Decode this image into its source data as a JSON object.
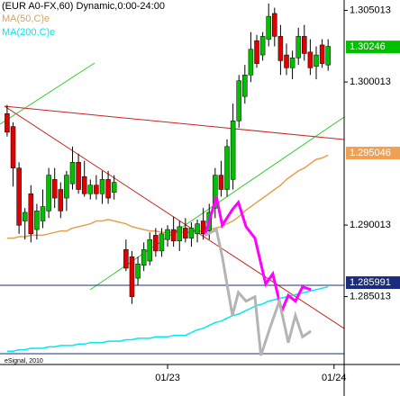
{
  "chart_data": {
    "type": "candlestick",
    "title": "(EUR A0-FX,60) Dynamic,0:00-24:00",
    "source": "eSignal, 2010",
    "categories": [
      null,
      null,
      null,
      null,
      null,
      null,
      null,
      null,
      null,
      null,
      null,
      null,
      null,
      null,
      null,
      null,
      null,
      null,
      null,
      null,
      null,
      null,
      null,
      null,
      null,
      null,
      null,
      "01/23",
      null,
      null,
      null,
      null,
      null,
      null,
      null,
      null,
      null,
      null,
      null,
      null,
      null,
      null,
      null,
      null,
      null,
      null,
      null,
      null,
      null,
      null,
      null,
      null,
      null,
      null,
      null,
      "01/24"
    ],
    "open": [
      1.2978,
      1.2969,
      1.294,
      1.2903,
      1.2922,
      1.2897,
      1.2903,
      1.291,
      1.2932,
      1.2925,
      1.2919,
      1.2929,
      1.2944,
      1.2934,
      1.2922,
      1.2928,
      1.2922,
      1.2932,
      1.2923,
      null,
      1.2883,
      1.2878,
      1.2863,
      1.2872,
      1.2875,
      1.2893,
      1.2882,
      1.289,
      1.2897,
      1.2889,
      1.2898,
      1.2891,
      1.2894,
      1.2903,
      1.2896,
      1.2912,
      1.2935,
      1.2925,
      1.2932,
      1.2973,
      1.299,
      1.3005,
      1.3029,
      1.3019,
      1.303,
      1.3048,
      1.3032,
      1.3019,
      1.301,
      1.3017,
      1.3032,
      1.3021,
      1.3011,
      1.3026,
      1.3012,
      null
    ],
    "high": [
      1.2984,
      1.2972,
      1.2944,
      1.2912,
      1.2928,
      1.2915,
      1.2925,
      1.294,
      1.294,
      1.293,
      1.2938,
      1.2955,
      1.295,
      1.2945,
      1.2932,
      1.2935,
      1.2938,
      1.2938,
      1.2935,
      null,
      1.289,
      1.2882,
      1.2878,
      1.2888,
      1.2895,
      1.2898,
      1.2898,
      1.29,
      1.2906,
      1.2903,
      1.2905,
      1.2902,
      1.2904,
      1.2912,
      1.2915,
      1.294,
      1.2945,
      1.296,
      1.2985,
      1.3005,
      1.3012,
      1.3035,
      1.3033,
      1.3035,
      1.3055,
      1.3052,
      1.304,
      1.3027,
      1.3022,
      1.3038,
      1.304,
      1.303,
      1.3025,
      1.303,
      1.303,
      null
    ],
    "low": [
      1.2962,
      1.2927,
      1.2894,
      1.289,
      1.2888,
      1.289,
      1.2898,
      1.2905,
      1.2912,
      1.2905,
      1.291,
      1.2925,
      1.2922,
      1.292,
      1.2918,
      1.2918,
      1.2915,
      1.2915,
      1.2918,
      null,
      1.2868,
      1.2845,
      1.2858,
      1.2868,
      1.2872,
      1.2878,
      1.2878,
      1.2885,
      1.2885,
      1.2882,
      1.2888,
      1.2885,
      1.2888,
      1.289,
      1.289,
      1.2905,
      1.292,
      1.292,
      1.2925,
      1.2968,
      1.2985,
      1.3,
      1.301,
      1.3015,
      1.3025,
      1.3025,
      1.3005,
      1.3005,
      1.3002,
      1.3012,
      1.3015,
      1.3005,
      1.3002,
      1.301,
      1.3008,
      null
    ],
    "close": [
      1.2965,
      1.294,
      1.29,
      1.2909,
      1.2894,
      1.291,
      1.2913,
      1.2935,
      1.2919,
      1.291,
      1.2935,
      1.2944,
      1.2925,
      1.2922,
      1.2928,
      1.2922,
      1.2932,
      1.2919,
      1.293,
      null,
      1.287,
      1.285,
      1.2873,
      1.2883,
      1.289,
      1.2882,
      1.2894,
      1.2897,
      1.2889,
      1.2899,
      1.2891,
      1.2898,
      1.2901,
      1.2894,
      1.2909,
      1.2935,
      1.2925,
      1.2955,
      1.2973,
      1.3001,
      1.3005,
      1.3023,
      1.3013,
      1.3032,
      1.3046,
      1.3032,
      1.3015,
      1.301,
      1.3017,
      1.3032,
      1.302,
      1.301,
      1.3019,
      1.3013,
      1.3025,
      null
    ],
    "up_color": "#00c000",
    "down_color": "#e00000",
    "series": [
      {
        "name": "MA(50,C)e",
        "color": "#e8a050",
        "values": [
          1.2891,
          1.2891,
          1.2892,
          1.2892,
          1.2893,
          1.2893,
          1.2893,
          1.2894,
          1.2895,
          1.2896,
          1.2896,
          1.2898,
          1.2899,
          1.29,
          1.2901,
          1.2903,
          1.2903,
          1.2904,
          1.2903,
          1.2902,
          1.2901,
          1.2899,
          1.2898,
          1.2897,
          1.2896,
          1.2896,
          1.2895,
          1.2895,
          1.2895,
          1.2895,
          1.2895,
          1.2895,
          1.2896,
          1.2896,
          1.2897,
          1.2898,
          1.2899,
          1.2901,
          1.2903,
          1.2906,
          1.291,
          1.2913,
          1.2916,
          1.2919,
          1.2922,
          1.2925,
          1.2928,
          1.2932,
          1.2935,
          1.2938,
          1.294,
          1.2943,
          1.2946,
          1.2947,
          1.2949,
          null
        ]
      },
      {
        "name": "MA(200,C)e",
        "color": "#00e8f0",
        "values": [
          1.2812,
          1.2812,
          1.2813,
          1.2813,
          1.2814,
          1.2814,
          1.2814,
          1.2815,
          1.2815,
          1.2816,
          1.2816,
          1.2816,
          1.2817,
          1.2817,
          1.2818,
          1.2818,
          1.2818,
          1.2819,
          1.2819,
          1.2819,
          1.282,
          1.282,
          1.2821,
          1.2821,
          1.2821,
          1.2822,
          1.2822,
          1.2822,
          1.2823,
          1.2823,
          1.2823,
          1.2825,
          1.2827,
          1.2828,
          1.283,
          1.2832,
          1.2833,
          1.2835,
          1.2837,
          1.2838,
          1.284,
          1.2842,
          1.2844,
          1.2845,
          1.2847,
          1.2848,
          1.2849,
          1.285,
          1.2851,
          1.2852,
          1.2853,
          1.2854,
          1.2855,
          1.2856,
          1.2857,
          null
        ]
      }
    ],
    "projections": [
      {
        "color": "#ff00ff",
        "x": [
          33.3,
          35.2,
          36.2,
          37.9,
          38.9,
          40.2,
          41.7,
          43.5,
          44.7,
          46.2,
          47.3,
          48.5,
          49.7,
          51.1
        ],
        "values": [
          1.2893,
          1.292,
          1.29,
          1.2911,
          1.2916,
          1.2899,
          1.2891,
          1.2859,
          1.2866,
          1.284,
          1.2851,
          1.2847,
          1.2857,
          1.2855
        ]
      },
      {
        "color": "#b4b4b4",
        "x": [
          33.3,
          35.2,
          36.2,
          37.9,
          38.9,
          40.2,
          41.7,
          42.7,
          44.2,
          45.8,
          47.3,
          48.5,
          49.7,
          51.1
        ],
        "values": [
          1.2893,
          1.2897,
          1.2878,
          1.2837,
          1.2853,
          1.2847,
          1.285,
          1.2809,
          1.2828,
          1.2847,
          1.2818,
          1.2837,
          1.2822,
          1.2826
        ]
      }
    ],
    "markers": [
      {
        "value": 1.30246,
        "color": "#00c000"
      },
      {
        "value": 1.295046,
        "color": "#f0a050"
      },
      {
        "value": 1.285991,
        "color": "#1c2c7c"
      }
    ],
    "xlim": [
      -1.2,
      56.7
    ],
    "ylim": [
      1.28027,
      1.30574
    ],
    "yticks": [
      1.285013,
      1.290013,
      1.300013,
      1.305013
    ]
  }
}
